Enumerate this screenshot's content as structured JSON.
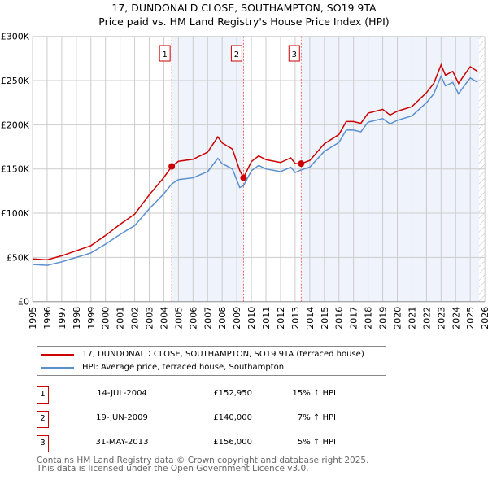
{
  "chart_data": {
    "type": "line",
    "title": "17, DUNDONALD CLOSE, SOUTHAMPTON, SO19 9TA",
    "subtitle": "Price paid vs. HM Land Registry's House Price Index (HPI)",
    "xlim": [
      1995,
      2026
    ],
    "ylim": [
      0,
      300000
    ],
    "yticks": [
      {
        "v": 0,
        "label": "£0"
      },
      {
        "v": 50000,
        "label": "£50K"
      },
      {
        "v": 100000,
        "label": "£100K"
      },
      {
        "v": 150000,
        "label": "£150K"
      },
      {
        "v": 200000,
        "label": "£200K"
      },
      {
        "v": 250000,
        "label": "£250K"
      },
      {
        "v": 300000,
        "label": "£300K"
      }
    ],
    "xticks": [
      "1995",
      "1996",
      "1997",
      "1998",
      "1999",
      "2000",
      "2001",
      "2002",
      "2003",
      "2004",
      "2005",
      "2006",
      "2007",
      "2008",
      "2009",
      "2010",
      "2011",
      "2012",
      "2013",
      "2014",
      "2015",
      "2016",
      "2017",
      "2018",
      "2019",
      "2020",
      "2021",
      "2022",
      "2023",
      "2024",
      "2025",
      "2026"
    ],
    "grid": true,
    "series": [
      {
        "name": "17, DUNDONALD CLOSE, SOUTHAMPTON, SO19 9TA (terraced house)",
        "color": "#cc0000",
        "x": [
          1995,
          1996,
          1997,
          1998,
          1999,
          2000,
          2001,
          2002,
          2003,
          2004,
          2004.54,
          2005,
          2006,
          2007,
          2007.7,
          2008,
          2008.7,
          2009.2,
          2009.46,
          2010,
          2010.5,
          2011,
          2012,
          2012.7,
          2013,
          2013.41,
          2014,
          2015,
          2016,
          2016.5,
          2017,
          2017.5,
          2018,
          2019,
          2019.5,
          2020,
          2021,
          2022,
          2022.5,
          2023,
          2023.3,
          2023.8,
          2024.2,
          2024.5,
          2025,
          2025.5
        ],
        "y": [
          48300,
          47200,
          51800,
          57500,
          63300,
          74800,
          87400,
          98900,
          120800,
          140300,
          152950,
          158700,
          161000,
          169000,
          186300,
          179400,
          172500,
          148400,
          140000,
          158400,
          164800,
          160500,
          157300,
          162600,
          156200,
          156000,
          159600,
          178500,
          189000,
          203700,
          203700,
          201600,
          213200,
          217400,
          211000,
          215300,
          220500,
          236300,
          246800,
          267800,
          256200,
          260400,
          246800,
          254100,
          265700,
          260400
        ]
      },
      {
        "name": "HPI: Average price, terraced house, Southampton",
        "color": "#5b8fd0",
        "x": [
          1995,
          1996,
          1997,
          1998,
          1999,
          2000,
          2001,
          2002,
          2003,
          2004,
          2004.54,
          2005,
          2006,
          2007,
          2007.7,
          2008,
          2008.7,
          2009.2,
          2009.46,
          2010,
          2010.5,
          2011,
          2012,
          2012.7,
          2013,
          2013.41,
          2014,
          2015,
          2016,
          2016.5,
          2017,
          2017.5,
          2018,
          2019,
          2019.5,
          2020,
          2021,
          2022,
          2022.5,
          2023,
          2023.3,
          2023.8,
          2024.2,
          2024.5,
          2025,
          2025.5
        ],
        "y": [
          42000,
          41000,
          45000,
          50000,
          55000,
          65000,
          76000,
          86000,
          105000,
          122000,
          133000,
          138000,
          140000,
          147000,
          162000,
          156000,
          150000,
          129000,
          131000,
          148000,
          154000,
          150000,
          147000,
          152000,
          146000,
          149000,
          152000,
          170000,
          180000,
          194000,
          194000,
          192000,
          203000,
          207000,
          201000,
          205000,
          210000,
          225000,
          235000,
          255000,
          244000,
          248000,
          235000,
          242000,
          253000,
          248000
        ]
      }
    ],
    "sales": [
      {
        "n": "1",
        "x": 2004.54,
        "price": 152950,
        "date": "14-JUL-2004",
        "price_label": "£152,950",
        "hpi": "15% ↑ HPI"
      },
      {
        "n": "2",
        "x": 2009.46,
        "price": 140000,
        "date": "19-JUN-2009",
        "price_label": "£140,000",
        "hpi": "7% ↑ HPI"
      },
      {
        "n": "3",
        "x": 2013.41,
        "price": 156000,
        "date": "31-MAY-2013",
        "price_label": "£156,000",
        "hpi": "5% ↑ HPI"
      }
    ],
    "forecast_start": 2025.6,
    "shade_color": "#eef3fc"
  },
  "footer": {
    "line1": "Contains HM Land Registry data © Crown copyright and database right 2025.",
    "line2": "This data is licensed under the Open Government Licence v3.0."
  }
}
